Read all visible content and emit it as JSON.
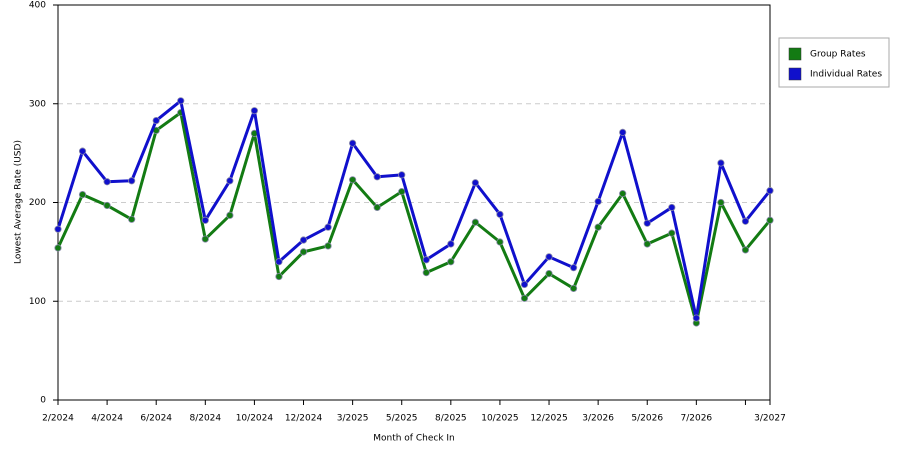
{
  "chart_data": {
    "type": "line",
    "x_label": "Month of Check In",
    "y_label": "Lowest Average Rate (USD)",
    "categories": [
      "2/2024",
      null,
      "4/2024",
      null,
      "6/2024",
      null,
      "8/2024",
      null,
      "10/2024",
      null,
      "12/2024",
      null,
      "3/2025",
      null,
      "5/2025",
      null,
      "8/2025",
      null,
      "10/2025",
      null,
      "12/2025",
      null,
      "3/2026",
      null,
      "5/2026",
      null,
      "7/2026",
      null,
      null,
      "3/2027"
    ],
    "series": [
      {
        "name": "Group Rates",
        "color": "#137b13",
        "values": [
          154,
          208,
          197,
          183,
          273,
          291,
          163,
          187,
          270,
          125,
          150,
          156,
          223,
          195,
          211,
          129,
          140,
          180,
          160,
          103,
          128,
          113,
          175,
          209,
          158,
          169,
          78,
          200,
          152,
          182
        ]
      },
      {
        "name": "Individual Rates",
        "color": "#1010cc",
        "values": [
          173,
          252,
          221,
          222,
          283,
          303,
          182,
          222,
          293,
          140,
          162,
          175,
          260,
          226,
          228,
          142,
          158,
          220,
          188,
          117,
          145,
          134,
          201,
          271,
          179,
          195,
          83,
          240,
          181,
          212
        ]
      }
    ],
    "ylim": [
      0,
      400
    ],
    "yticks": [
      0,
      100,
      200,
      300,
      400
    ],
    "grid": true,
    "legend": "right"
  }
}
